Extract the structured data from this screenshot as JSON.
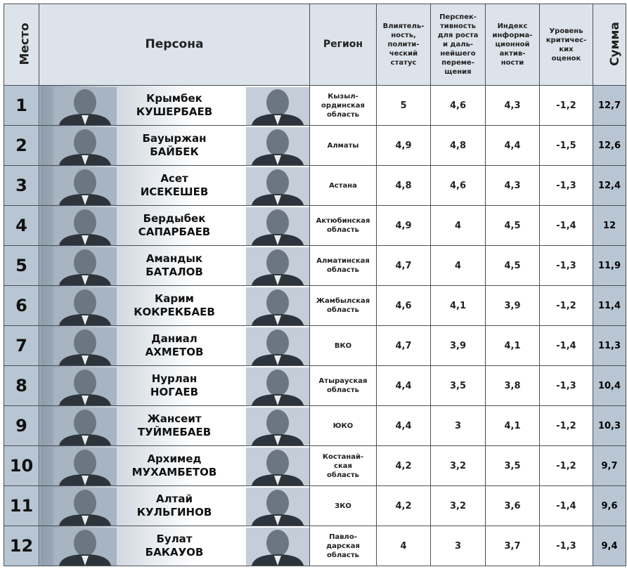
{
  "header": {
    "place": "Место",
    "person": "Персона",
    "region": "Регион",
    "col1": "Влиятель-\nность,\nполити-\nческий\nстатус",
    "col2": "Перспек-\nтивность\nдля роста\nи даль-\nнейшего\nпереме-\nщения",
    "col3": "Индекс\nинформа-\nционной\nактив-\nности",
    "col4": "Уровень\nкритичес-\nких\nоценок",
    "sum": "Сумма"
  },
  "table": {
    "rows": [
      [
        "1",
        "Крымбек",
        "КУШЕРБАЕВ",
        "Кызыл-\nординская\nобласть",
        "5",
        "4,6",
        "4,3",
        "-1,2",
        "12,7"
      ],
      [
        "2",
        "Бауыржан",
        "БАЙБЕК",
        "Алматы",
        "4,9",
        "4,8",
        "4,4",
        "-1,5",
        "12,6"
      ],
      [
        "3",
        "Асет",
        "ИСЕКЕШЕВ",
        "Астана",
        "4,8",
        "4,6",
        "4,3",
        "-1,3",
        "12,4"
      ],
      [
        "4",
        "Бердыбек",
        "САПАРБАЕВ",
        "Актюбинская\nобласть",
        "4,9",
        "4",
        "4,5",
        "-1,4",
        "12"
      ],
      [
        "5",
        "Амандык",
        "БАТАЛОВ",
        "Алматинская\nобласть",
        "4,7",
        "4",
        "4,5",
        "-1,3",
        "11,9"
      ],
      [
        "6",
        "Карим",
        "КОКРЕКБАЕВ",
        "Жамбылская\nобласть",
        "4,6",
        "4,1",
        "3,9",
        "-1,2",
        "11,4"
      ],
      [
        "7",
        "Даниал",
        "АХМЕТОВ",
        "ВКО",
        "4,7",
        "3,9",
        "4,1",
        "-1,4",
        "11,3"
      ],
      [
        "8",
        "Нурлан",
        "НОГАЕВ",
        "Атырауская\nобласть",
        "4,4",
        "3,5",
        "3,8",
        "-1,3",
        "10,4"
      ],
      [
        "9",
        "Жансеит",
        "ТУЙМЕБАЕВ",
        "ЮКО",
        "4,4",
        "3",
        "4,1",
        "-1,2",
        "10,3"
      ],
      [
        "10",
        "Архимед",
        "МУХАМБЕТОВ",
        "Костанай-\nская\nобласть",
        "4,2",
        "3,2",
        "3,5",
        "-1,2",
        "9,7"
      ],
      [
        "11",
        "Алтай",
        "КУЛЬГИНОВ",
        "ЗКО",
        "4,2",
        "3,2",
        "3,6",
        "-1,4",
        "9,6"
      ],
      [
        "12",
        "Булат",
        "БАКАУОВ",
        "Павло-\nдарская\nобласть",
        "4",
        "3",
        "3,7",
        "-1,3",
        "9,4"
      ]
    ]
  }
}
